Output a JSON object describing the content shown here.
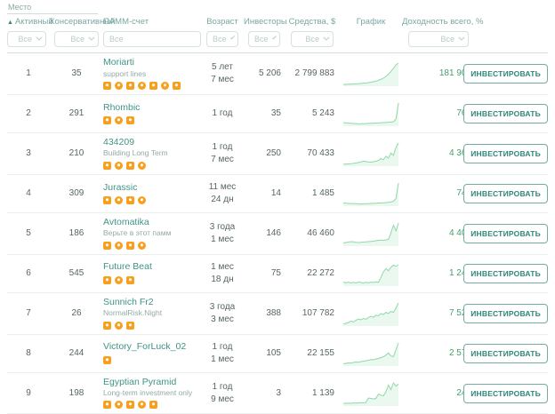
{
  "colors": {
    "accent": "#2f8679",
    "link": "#3f9488",
    "profit_green": "#45a06b",
    "badge_orange": "#f8a01d",
    "spark": "#8fd9a8",
    "spark_fill": "rgba(143,217,168,0.18)"
  },
  "header": {
    "group_label": "Место",
    "sort_indicator": "▲",
    "columns": {
      "active": "Активный",
      "conservative": "Консервативный",
      "account": "ПАММ-счет",
      "age": "Возраст",
      "investors": "Инвесторы",
      "funds": "Средства, $",
      "chart": "График",
      "profit": "Доходность всего, %"
    },
    "filters": {
      "all_label": "Все",
      "account_placeholder": "Все"
    }
  },
  "invest_button_label": "ИНВЕСТИРОВАТЬ",
  "rows": [
    {
      "active": "1",
      "conservative": "35",
      "name": "Moriarti",
      "subtitle": "support lines",
      "badges": 7,
      "age": [
        "5 лет",
        "7 мес"
      ],
      "investors": "5 206",
      "funds": "2 799 883",
      "profit": "181 903",
      "spark": [
        0.04,
        0.04,
        0.05,
        0.05,
        0.06,
        0.06,
        0.07,
        0.08,
        0.09,
        0.1,
        0.11,
        0.13,
        0.15,
        0.17,
        0.2,
        0.24,
        0.28,
        0.34,
        0.42,
        0.52,
        0.64,
        0.78,
        0.92,
        1.0
      ]
    },
    {
      "active": "2",
      "conservative": "291",
      "name": "Rhombic",
      "subtitle": "",
      "badges": 3,
      "age": [
        "1 год"
      ],
      "investors": "35",
      "funds": "5 243",
      "profit": "767",
      "spark": [
        0.12,
        0.11,
        0.1,
        0.09,
        0.08,
        0.08,
        0.07,
        0.06,
        0.08,
        0.07,
        0.08,
        0.09,
        0.09,
        0.1,
        0.1,
        0.11,
        0.12,
        0.12,
        0.13,
        0.14,
        0.15,
        0.16,
        0.3,
        1.0
      ]
    },
    {
      "active": "3",
      "conservative": "210",
      "name": "434209",
      "subtitle": "Building Long Term",
      "badges": 4,
      "age": [
        "1 год",
        "7 мес"
      ],
      "investors": "250",
      "funds": "70 433",
      "profit": "4 366",
      "spark": [
        0.05,
        0.05,
        0.06,
        0.07,
        0.08,
        0.1,
        0.12,
        0.15,
        0.18,
        0.17,
        0.15,
        0.14,
        0.16,
        0.18,
        0.22,
        0.3,
        0.25,
        0.4,
        0.32,
        0.55,
        0.45,
        0.8,
        1.0
      ]
    },
    {
      "active": "4",
      "conservative": "309",
      "name": "Jurassic",
      "subtitle": "",
      "badges": 4,
      "age": [
        "11 мес",
        "24 дн"
      ],
      "investors": "14",
      "funds": "1 485",
      "profit": "740",
      "spark": [
        0.1,
        0.09,
        0.08,
        0.08,
        0.07,
        0.07,
        0.06,
        0.05,
        0.06,
        0.07,
        0.07,
        0.08,
        0.08,
        0.09,
        0.1,
        0.1,
        0.11,
        0.12,
        0.13,
        0.15,
        0.18,
        0.3,
        1.0
      ]
    },
    {
      "active": "5",
      "conservative": "186",
      "name": "Avtomatika",
      "subtitle": "Верьте в этот памм",
      "badges": 4,
      "age": [
        "3 года",
        "1 мес"
      ],
      "investors": "146",
      "funds": "46 460",
      "profit": "4 409",
      "spark": [
        0.1,
        0.12,
        0.14,
        0.16,
        0.15,
        0.13,
        0.12,
        0.13,
        0.14,
        0.15,
        0.16,
        0.17,
        0.18,
        0.2,
        0.22,
        0.23,
        0.22,
        0.24,
        0.26,
        0.55,
        0.9,
        0.65,
        1.0
      ]
    },
    {
      "active": "6",
      "conservative": "545",
      "name": "Future Beat",
      "subtitle": "",
      "badges": 3,
      "age": [
        "1 мес",
        "18 дн"
      ],
      "investors": "75",
      "funds": "22 272",
      "profit": "1 247",
      "spark": [
        0.14,
        0.11,
        0.14,
        0.1,
        0.13,
        0.11,
        0.14,
        0.12,
        0.1,
        0.13,
        0.11,
        0.14,
        0.12,
        0.15,
        0.13,
        0.35,
        0.6,
        0.75,
        0.65,
        0.8,
        0.9,
        0.85,
        0.92
      ]
    },
    {
      "active": "7",
      "conservative": "26",
      "name": "Sunnich Fr2",
      "subtitle": "NormalRisk.Night",
      "badges": 3,
      "age": [
        "3 года",
        "3 мес"
      ],
      "investors": "388",
      "funds": "107 782",
      "profit": "7 522",
      "spark": [
        0.05,
        0.08,
        0.12,
        0.18,
        0.15,
        0.22,
        0.28,
        0.24,
        0.3,
        0.26,
        0.35,
        0.4,
        0.36,
        0.45,
        0.42,
        0.52,
        0.48,
        0.58,
        0.52,
        0.62,
        0.58,
        0.78,
        1.0
      ]
    },
    {
      "active": "8",
      "conservative": "244",
      "name": "Victory_ForLuck_02",
      "subtitle": "",
      "badges": 1,
      "age": [
        "1 год",
        "1 мес"
      ],
      "investors": "105",
      "funds": "22 155",
      "profit": "2 577",
      "spark": [
        0.06,
        0.08,
        0.1,
        0.09,
        0.12,
        0.14,
        0.13,
        0.16,
        0.18,
        0.2,
        0.22,
        0.25,
        0.24,
        0.28,
        0.3,
        0.34,
        0.38,
        0.45,
        0.55,
        0.42,
        0.38,
        0.7,
        1.0
      ]
    },
    {
      "active": "9",
      "conservative": "198",
      "name": "Egyptian Pyramid",
      "subtitle": "Long-term investment only",
      "badges": 5,
      "age": [
        "1 год",
        "9 мес"
      ],
      "investors": "3",
      "funds": "1 139",
      "profit": "248",
      "spark": [
        0.08,
        0.08,
        0.09,
        0.08,
        0.1,
        0.09,
        0.1,
        0.11,
        0.1,
        0.12,
        0.32,
        0.3,
        0.28,
        0.3,
        0.5,
        0.45,
        0.42,
        0.6,
        0.9,
        0.7,
        1.0,
        0.85,
        0.95
      ]
    }
  ]
}
